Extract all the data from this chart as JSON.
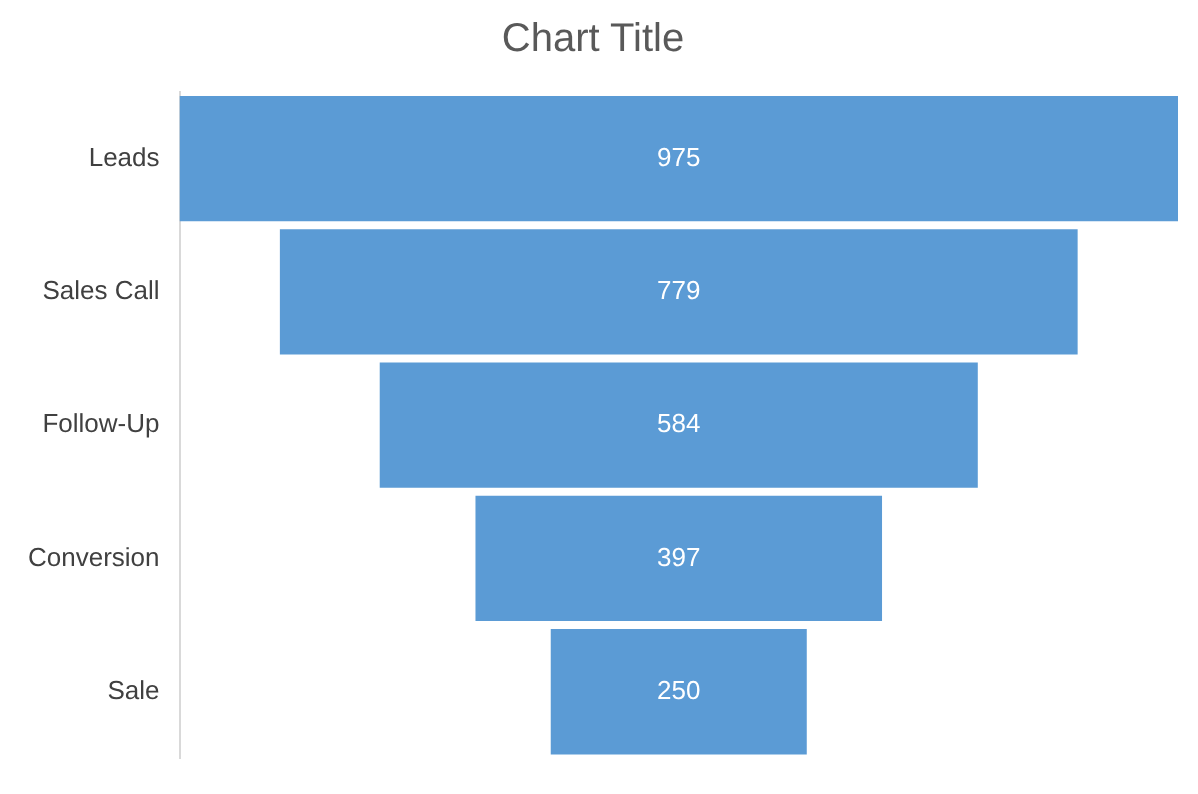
{
  "chart_data": {
    "type": "other",
    "title": "Chart Title",
    "categories": [
      "Leads",
      "Sales Call",
      "Follow-Up",
      "Conversion",
      "Sale"
    ],
    "values": [
      975,
      779,
      584,
      397,
      250
    ],
    "color": "#5b9bd5",
    "data_labels": true
  }
}
